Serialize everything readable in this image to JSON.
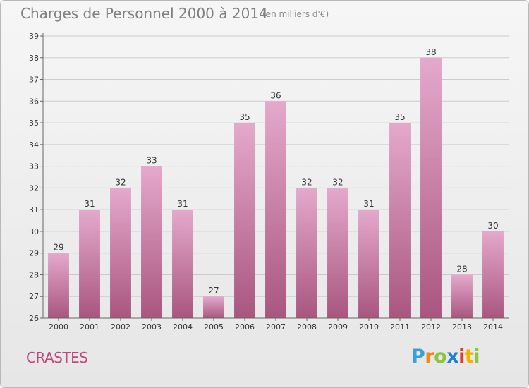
{
  "header": {
    "title": "Charges de Personnel 2000 à 2014",
    "subtitle": "(en milliers d'€)"
  },
  "footer": {
    "commune": "CRASTES",
    "logo_letters": [
      "P",
      "r",
      "o",
      "x",
      "i",
      "t",
      "i"
    ]
  },
  "colors": {
    "bar_top": "#e4a9cc",
    "bar_bottom": "#a9567f",
    "grid": "#cccccc",
    "axis_text": "#333333",
    "commune": "#c2477d"
  },
  "chart_data": {
    "type": "bar",
    "categories": [
      "2000",
      "2001",
      "2002",
      "2003",
      "2004",
      "2005",
      "2006",
      "2007",
      "2008",
      "2009",
      "2010",
      "2011",
      "2012",
      "2013",
      "2014"
    ],
    "values": [
      29,
      31,
      32,
      33,
      31,
      27,
      35,
      36,
      32,
      32,
      31,
      35,
      38,
      28,
      30
    ],
    "yticks": [
      26,
      27,
      28,
      29,
      30,
      31,
      32,
      33,
      34,
      35,
      36,
      37,
      38,
      39
    ],
    "ylim": [
      26,
      39
    ],
    "grid": true,
    "xlabel": "",
    "ylabel": ""
  }
}
